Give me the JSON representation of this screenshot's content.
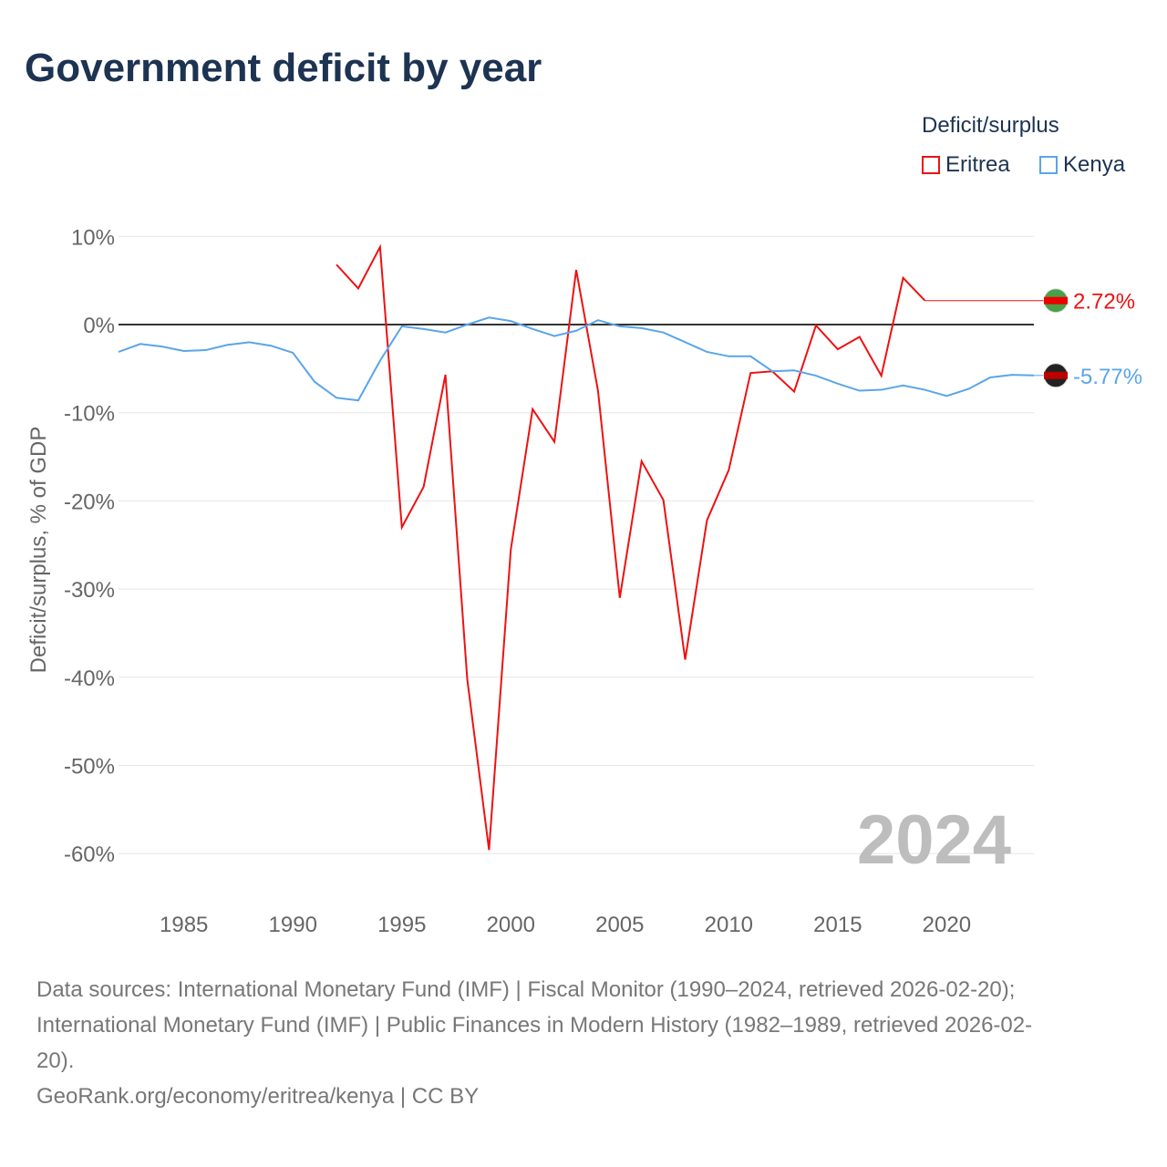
{
  "title": "Government deficit by year",
  "legend": {
    "title": "Deficit/surplus",
    "items": [
      {
        "name": "Eritrea",
        "color": "#ee1111"
      },
      {
        "name": "Kenya",
        "color": "#5aa5ea"
      }
    ]
  },
  "year_label": "2024",
  "source_line1": "Data sources: International Monetary Fund (IMF) | Fiscal Monitor (1990–2024, retrieved 2026-02-20);",
  "source_line2": "International Monetary Fund (IMF) | Public Finances in Modern History (1982–1989, retrieved 2026-02-",
  "source_line3": "20).",
  "credit": "GeoRank.org/economy/eritrea/kenya | CC BY",
  "chart_data": {
    "type": "line",
    "title": "Government deficit by year",
    "ylabel": "Deficit/surplus, % of GDP",
    "xlim": [
      1982,
      2024
    ],
    "ylim": [
      -60,
      10
    ],
    "xticks": [
      1985,
      1990,
      1995,
      2000,
      2005,
      2010,
      2015,
      2020
    ],
    "yticks": [
      10,
      0,
      -10,
      -20,
      -30,
      -40,
      -50,
      -60
    ],
    "ytick_labels": [
      "10%",
      "0%",
      "-10%",
      "-20%",
      "-30%",
      "-40%",
      "-50%",
      "-60%"
    ],
    "series": [
      {
        "name": "Eritrea",
        "color": "#ee1111",
        "end_label": "2.72%",
        "x": [
          1992,
          1993,
          1994,
          1995,
          1996,
          1997,
          1998,
          1999,
          2000,
          2001,
          2002,
          2003,
          2004,
          2005,
          2006,
          2007,
          2008,
          2009,
          2010,
          2011,
          2012,
          2013,
          2014,
          2015,
          2016,
          2017,
          2018,
          2019
        ],
        "y": [
          6.8,
          4.1,
          8.8,
          -23,
          -18.4,
          -5.7,
          -40.2,
          -59.6,
          -25.5,
          -9.6,
          -13.3,
          6.2,
          -7.5,
          -31,
          -15.5,
          -19.9,
          -38,
          -22.2,
          -16.5,
          -5.5,
          -5.3,
          -7.6,
          -0.1,
          -2.8,
          -1.4,
          -5.8,
          5.3,
          2.72
        ]
      },
      {
        "name": "Kenya",
        "color": "#5aa5ea",
        "end_label": "-5.77%",
        "x": [
          1982,
          1983,
          1984,
          1985,
          1986,
          1987,
          1988,
          1989,
          1990,
          1991,
          1992,
          1993,
          1994,
          1995,
          1996,
          1997,
          1998,
          1999,
          2000,
          2001,
          2002,
          2003,
          2004,
          2005,
          2006,
          2007,
          2008,
          2009,
          2010,
          2011,
          2012,
          2013,
          2014,
          2015,
          2016,
          2017,
          2018,
          2019,
          2020,
          2021,
          2022,
          2023,
          2024
        ],
        "y": [
          -3.1,
          -2.2,
          -2.5,
          -3.0,
          -2.9,
          -2.3,
          -2.0,
          -2.4,
          -3.2,
          -6.5,
          -8.3,
          -8.6,
          -4.1,
          -0.2,
          -0.5,
          -0.9,
          0,
          0.8,
          0.4,
          -0.5,
          -1.3,
          -0.7,
          0.5,
          -0.2,
          -0.4,
          -0.9,
          -2.0,
          -3.1,
          -3.6,
          -3.6,
          -5.3,
          -5.2,
          -5.8,
          -6.7,
          -7.5,
          -7.4,
          -6.9,
          -7.4,
          -8.1,
          -7.3,
          -6.0,
          -5.7,
          -5.77
        ]
      }
    ]
  }
}
